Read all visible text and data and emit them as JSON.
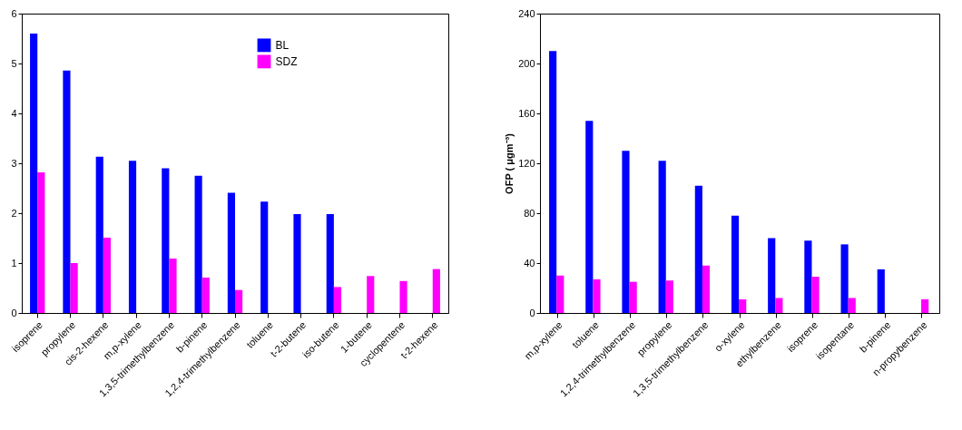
{
  "chart_data": [
    {
      "type": "bar",
      "categories": [
        "isoprene",
        "propylene",
        "cis-2-hexene",
        "m,p-xylene",
        "1,3,5-trimethylbenzene",
        "b-pinene",
        "1,2,4-trimethylbenzene",
        "toluene",
        "t-2-butene",
        "iso-butene",
        "1-butene",
        "cyclopentene",
        "t-2-hexene"
      ],
      "series": [
        {
          "name": "BL",
          "color": "#0000ff",
          "values": [
            5.6,
            4.86,
            3.13,
            3.05,
            2.9,
            2.75,
            2.41,
            2.23,
            1.98,
            1.98,
            null,
            null,
            null
          ]
        },
        {
          "name": "SDZ",
          "color": "#ff00ff",
          "values": [
            2.82,
            1.0,
            1.51,
            null,
            1.09,
            0.71,
            0.46,
            null,
            null,
            0.52,
            0.74,
            0.64,
            0.88
          ]
        }
      ],
      "ylim": [
        0,
        6
      ],
      "yticks": [
        0,
        1,
        2,
        3,
        4,
        5,
        6
      ],
      "legend": "top"
    },
    {
      "type": "bar",
      "ylabel": "OFP ( μgm⁻³)",
      "categories": [
        "m,p-xylene",
        "toluene",
        "1,2,4-trimethylbenzene",
        "propylene",
        "1,3,5-trimethylbenzene",
        "o-xylene",
        "ethylbenzene",
        "isoprene",
        "isopentane",
        "b-pinene",
        "n-propybenzene"
      ],
      "series": [
        {
          "name": "BL",
          "color": "#0000ff",
          "values": [
            210,
            154,
            130,
            122,
            102,
            78,
            60,
            58,
            55,
            35,
            null
          ]
        },
        {
          "name": "SDZ",
          "color": "#ff00ff",
          "values": [
            30,
            27,
            25,
            26,
            38,
            11,
            12,
            29,
            12,
            null,
            11
          ]
        }
      ],
      "ylim": [
        0,
        240
      ],
      "yticks": [
        0,
        40,
        80,
        120,
        160,
        200,
        240
      ],
      "legend": "top"
    }
  ]
}
